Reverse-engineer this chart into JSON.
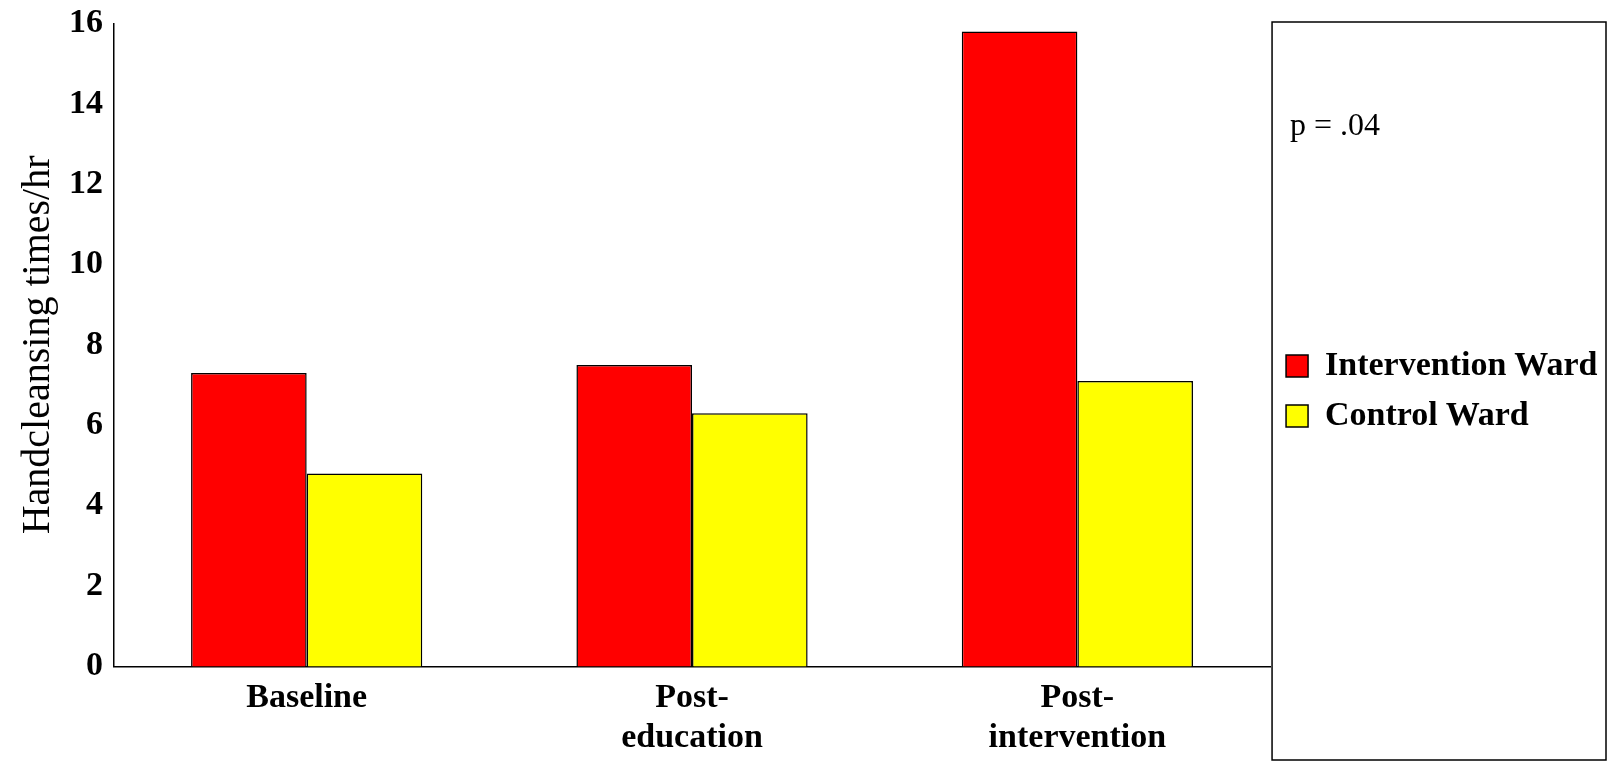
{
  "chart_data": {
    "type": "bar",
    "categories": [
      "Baseline",
      "Post-education",
      "Post-intervention"
    ],
    "series": [
      {
        "name": "Intervention Ward",
        "color": "#ff0000",
        "values": [
          7.3,
          7.5,
          15.8
        ]
      },
      {
        "name": "Control Ward",
        "color": "#ffff00",
        "values": [
          4.8,
          6.3,
          7.1
        ]
      }
    ],
    "ylabel": "Handcleansing times/hr",
    "ylim": [
      0,
      16
    ],
    "yticks": [
      0,
      2,
      4,
      6,
      8,
      10,
      12,
      14,
      16
    ],
    "annotations": [
      "p = .04"
    ],
    "grid": false,
    "legend": "right"
  }
}
